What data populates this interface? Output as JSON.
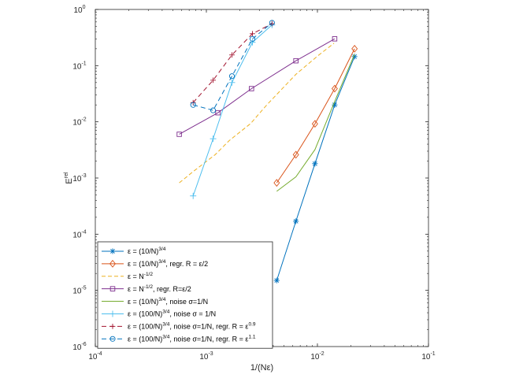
{
  "chart_data": {
    "type": "line",
    "xlabel": {
      "base": "1/(N",
      "sym": "ε",
      "tail": ")"
    },
    "ylabel": {
      "base": "E",
      "sup": "rel"
    },
    "x_scale": "log",
    "y_scale": "log",
    "xlim": [
      0.0001,
      0.1
    ],
    "ylim": [
      1e-06,
      1
    ],
    "x_ticks": [
      {
        "value": 0.0001,
        "base": "10",
        "exp": "-4"
      },
      {
        "value": 0.001,
        "base": "10",
        "exp": "-3"
      },
      {
        "value": 0.01,
        "base": "10",
        "exp": "-2"
      },
      {
        "value": 0.1,
        "base": "10",
        "exp": "-1"
      }
    ],
    "y_ticks": [
      {
        "value": 1e-06,
        "base": "10",
        "exp": "-6"
      },
      {
        "value": 1e-05,
        "base": "10",
        "exp": "-5"
      },
      {
        "value": 0.0001,
        "base": "10",
        "exp": "-4"
      },
      {
        "value": 0.001,
        "base": "10",
        "exp": "-3"
      },
      {
        "value": 0.01,
        "base": "10",
        "exp": "-2"
      },
      {
        "value": 0.1,
        "base": "10",
        "exp": "-1"
      },
      {
        "value": 1,
        "base": "10",
        "exp": "0"
      }
    ],
    "grid": false,
    "legend_position": "bottom-left",
    "series": [
      {
        "label": [
          [
            "ε = (10/N)"
          ],
          [
            "3/4",
            "sup"
          ]
        ],
        "color": "#0072bd",
        "dash": "",
        "marker": "asterisk",
        "x": [
          0.0043,
          0.0064,
          0.0095,
          0.0143,
          0.0216
        ],
        "y": [
          1.5e-05,
          0.00017,
          0.0018,
          0.02,
          0.145
        ]
      },
      {
        "label": [
          [
            "ε = (10/N)"
          ],
          [
            "3/4",
            "sup"
          ],
          [
            ", regr. R = ε/2"
          ]
        ],
        "color": "#d95319",
        "dash": "",
        "marker": "diamond",
        "x": [
          0.0043,
          0.0064,
          0.0095,
          0.0143,
          0.0216
        ],
        "y": [
          0.00082,
          0.0026,
          0.0092,
          0.039,
          0.2
        ]
      },
      {
        "label": [
          [
            "ε = N"
          ],
          [
            "-1/2",
            "sup"
          ]
        ],
        "color": "#edb120",
        "dash": "5,3",
        "marker": "none",
        "x": [
          0.00057,
          0.00076,
          0.0012,
          0.0016,
          0.0025,
          0.0035,
          0.0064,
          0.0101,
          0.0141
        ],
        "y": [
          0.00082,
          0.0013,
          0.0026,
          0.0046,
          0.0093,
          0.02,
          0.07,
          0.15,
          0.25
        ]
      },
      {
        "label": [
          [
            "ε = N"
          ],
          [
            "-1/2",
            "sup"
          ],
          [
            ", regr. R=ε/2"
          ]
        ],
        "color": "#7e2f8e",
        "dash": "",
        "marker": "square",
        "x": [
          0.00057,
          0.00127,
          0.00255,
          0.0064,
          0.0143
        ],
        "y": [
          0.006,
          0.0145,
          0.039,
          0.122,
          0.3
        ]
      },
      {
        "label": [
          [
            "ε = (10/N)"
          ],
          [
            "3/4",
            "sup"
          ],
          [
            ", noise σ=1/N"
          ]
        ],
        "color": "#77ac30",
        "dash": "",
        "marker": "none",
        "x": [
          0.0043,
          0.0064,
          0.0095,
          0.0143,
          0.0216
        ],
        "y": [
          0.00058,
          0.00105,
          0.0032,
          0.023,
          0.16
        ]
      },
      {
        "label": [
          [
            "ε = (100/N)"
          ],
          [
            "3/4",
            "sup"
          ],
          [
            ", noise σ = 1/N"
          ]
        ],
        "color": "#4dbeee",
        "dash": "",
        "marker": "plus",
        "x": [
          0.00076,
          0.00115,
          0.0017,
          0.0026,
          0.0039
        ],
        "y": [
          0.00048,
          0.005,
          0.05,
          0.26,
          0.53
        ]
      },
      {
        "label": [
          [
            "ε = (100/N)"
          ],
          [
            "3/4",
            "sup"
          ],
          [
            ", noise σ=1/N, regr. R = ε"
          ],
          [
            "0.9",
            "sup"
          ]
        ],
        "color": "#a2142f",
        "dash": "6,4",
        "marker": "cross",
        "x": [
          0.00076,
          0.00115,
          0.0017,
          0.0026,
          0.0039
        ],
        "y": [
          0.022,
          0.055,
          0.155,
          0.37,
          0.56
        ]
      },
      {
        "label": [
          [
            "ε = (100/N)"
          ],
          [
            "3/4",
            "sup"
          ],
          [
            ", noise σ=1/N, regr. R = ε"
          ],
          [
            "1.1",
            "sup"
          ]
        ],
        "color": "#0072bd",
        "dash": "6,4",
        "marker": "circle",
        "x": [
          0.00076,
          0.00115,
          0.0017,
          0.0026,
          0.0039
        ],
        "y": [
          0.02,
          0.016,
          0.065,
          0.3,
          0.58
        ]
      }
    ]
  }
}
